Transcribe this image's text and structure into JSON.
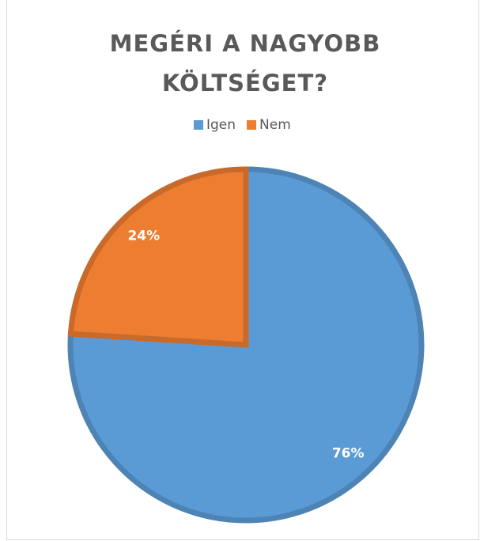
{
  "chart_data": {
    "type": "pie",
    "title": "MEGÉRI A NAGYOBB KÖLTSÉGET?",
    "categories": [
      "Igen",
      "Nem"
    ],
    "values": [
      76,
      24
    ],
    "value_labels": [
      "76%",
      "24%"
    ],
    "colors": [
      "#5b9bd5",
      "#ed7d31"
    ],
    "legend": "top"
  }
}
